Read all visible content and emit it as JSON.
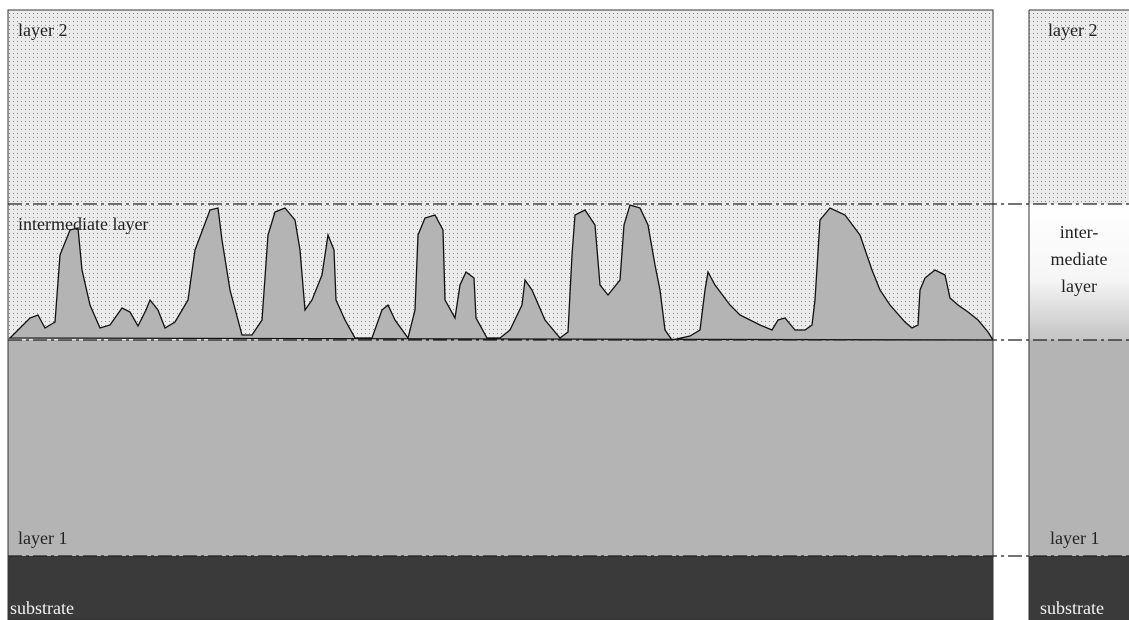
{
  "left_panel": {
    "labels": {
      "layer_2": "layer 2",
      "intermediate": "intermediate layer",
      "layer_1": "layer 1",
      "substrate": "substrate"
    }
  },
  "right_panel": {
    "labels": {
      "layer_2": "layer 2",
      "intermediate": [
        "inter-",
        "mediate",
        "layer"
      ],
      "layer_1": "layer 1",
      "substrate": "substrate"
    }
  }
}
